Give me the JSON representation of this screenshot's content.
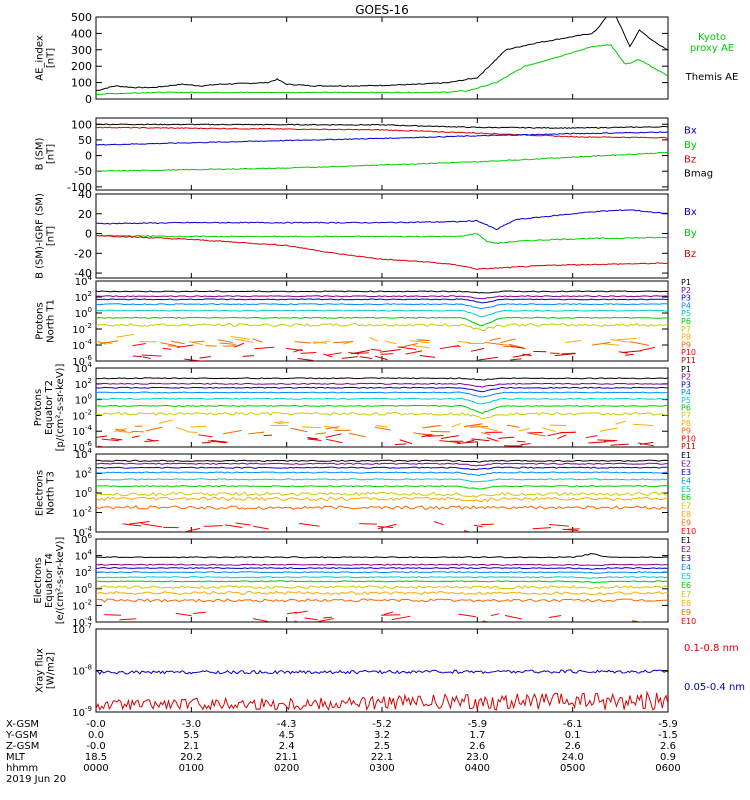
{
  "title": "GOES-16",
  "colors": {
    "black": "#000000",
    "blue": "#0000cc",
    "green": "#00cc00",
    "red": "#dd0000",
    "P": [
      "#000000",
      "#880088",
      "#0000cc",
      "#0088ff",
      "#00cccc",
      "#00cc00",
      "#cccc00",
      "#ffaa00",
      "#ff6600",
      "#ff0000",
      "#cc0000"
    ],
    "E": [
      "#000000",
      "#880088",
      "#0000cc",
      "#0088ff",
      "#00cccc",
      "#00cc00",
      "#cccc00",
      "#ffaa00",
      "#ff6600",
      "#ff0000"
    ]
  },
  "chart_data": [
    {
      "id": "ae",
      "type": "line",
      "ylabel": [
        "AE_index",
        "[nT]"
      ],
      "ylim": [
        0,
        500
      ],
      "yticks": [
        "0",
        "100",
        "200",
        "300",
        "400",
        "500"
      ],
      "legend": [
        {
          "text": "Kyoto",
          "color": "green"
        },
        {
          "text": "proxy AE",
          "color": "green"
        },
        {
          "text": "Themis AE",
          "color": "black"
        }
      ],
      "series": [
        {
          "name": "Themis AE",
          "color": "black",
          "x": [
            0,
            20,
            40,
            60,
            90,
            110,
            130,
            180,
            190,
            200,
            230,
            280,
            340,
            370,
            400,
            430,
            460,
            490,
            520,
            525,
            535,
            545,
            560,
            570,
            590,
            600
          ],
          "y": [
            50,
            80,
            70,
            70,
            90,
            80,
            90,
            100,
            120,
            90,
            80,
            80,
            90,
            100,
            130,
            300,
            340,
            370,
            400,
            420,
            500,
            510,
            320,
            420,
            330,
            300
          ]
        },
        {
          "name": "proxy AE",
          "color": "green",
          "x": [
            0,
            60,
            120,
            180,
            240,
            300,
            360,
            390,
            420,
            450,
            480,
            510,
            520,
            540,
            555,
            570,
            600
          ],
          "y": [
            30,
            40,
            40,
            40,
            40,
            40,
            40,
            50,
            100,
            200,
            250,
            300,
            320,
            330,
            210,
            240,
            140
          ]
        }
      ]
    },
    {
      "id": "bsm",
      "type": "line",
      "ylabel": [
        "B (SM)",
        "[nT]"
      ],
      "ylim": [
        -110,
        120
      ],
      "yticks": [
        "-100",
        "-50",
        "0",
        "50",
        "100"
      ],
      "legend": [
        {
          "text": "Bx",
          "color": "blue"
        },
        {
          "text": "By",
          "color": "green"
        },
        {
          "text": "Bz",
          "color": "red"
        },
        {
          "text": "Bmag",
          "color": "black"
        }
      ],
      "series": [
        {
          "name": "Bmag",
          "color": "black",
          "x": [
            0,
            300,
            400,
            500,
            600
          ],
          "y": [
            100,
            98,
            90,
            88,
            92
          ]
        },
        {
          "name": "Bz",
          "color": "red",
          "x": [
            0,
            300,
            400,
            500,
            600
          ],
          "y": [
            90,
            82,
            72,
            60,
            57
          ]
        },
        {
          "name": "Bx",
          "color": "blue",
          "x": [
            0,
            300,
            400,
            500,
            600
          ],
          "y": [
            34,
            55,
            63,
            70,
            75
          ]
        },
        {
          "name": "By",
          "color": "green",
          "x": [
            0,
            200,
            400,
            500,
            600
          ],
          "y": [
            -50,
            -40,
            -20,
            -5,
            10
          ]
        }
      ]
    },
    {
      "id": "bigrf",
      "type": "line",
      "ylabel": [
        "B (SM)-IGRF (SM)",
        "[nT]"
      ],
      "ylim": [
        -45,
        40
      ],
      "yticks": [
        "-40",
        "-20",
        "0",
        "20",
        "40"
      ],
      "legend": [
        {
          "text": "Bx",
          "color": "blue"
        },
        {
          "text": "By",
          "color": "green"
        },
        {
          "text": "Bz",
          "color": "red"
        }
      ],
      "series": [
        {
          "name": "Bx",
          "color": "blue",
          "x": [
            0,
            100,
            200,
            300,
            380,
            400,
            420,
            440,
            480,
            520,
            560,
            600
          ],
          "y": [
            10,
            11,
            11,
            11,
            12,
            13,
            4,
            14,
            18,
            22,
            24,
            20
          ]
        },
        {
          "name": "By",
          "color": "green",
          "x": [
            0,
            100,
            200,
            300,
            380,
            400,
            410,
            420,
            440,
            480,
            520,
            600
          ],
          "y": [
            -2,
            -3,
            -3,
            -3,
            -3,
            0,
            -8,
            -10,
            -8,
            -6,
            -5,
            -4
          ]
        },
        {
          "name": "Bz",
          "color": "red",
          "x": [
            0,
            100,
            200,
            250,
            300,
            350,
            380,
            400,
            420,
            480,
            540,
            600
          ],
          "y": [
            -2,
            -6,
            -12,
            -20,
            -26,
            -29,
            -32,
            -36,
            -35,
            -32,
            -31,
            -30
          ]
        }
      ]
    },
    {
      "id": "prot1",
      "type": "line",
      "ylabel": [
        "Protons",
        "North T1"
      ],
      "logmin": -6,
      "logmax": 4,
      "ytick_exps": [
        -6,
        -4,
        -2,
        0,
        2,
        4
      ],
      "legend_prefix": "P",
      "legend_count": 11,
      "levels": [
        2.7,
        2.1,
        1.7,
        1.1,
        0.3,
        -0.6,
        -1.5,
        -3.5,
        -3.8,
        -4.7,
        -5.3
      ],
      "dip_x": 405,
      "dip_depth": [
        0.2,
        0.3,
        0.4,
        0.6,
        0.8,
        1.0,
        0.6,
        0.3,
        0,
        0,
        0
      ]
    },
    {
      "id": "prot2",
      "type": "line",
      "ylabel": [
        "Protons",
        "Equator T2",
        "[p/(cm²-s-sr-keV)]"
      ],
      "logmin": -6,
      "logmax": 4,
      "ytick_exps": [
        -6,
        -4,
        -2,
        0,
        2,
        4
      ],
      "legend_prefix": "P",
      "legend_count": 11,
      "levels": [
        2.7,
        2.0,
        1.5,
        0.9,
        0.1,
        -0.8,
        -1.8,
        -3.5,
        -3.8,
        -4.7,
        -5.3
      ],
      "dip_x": 405,
      "dip_depth": [
        0.2,
        0.4,
        0.5,
        0.6,
        0.7,
        0.9,
        0.5,
        0.3,
        0,
        0,
        0
      ]
    },
    {
      "id": "elec3",
      "type": "line",
      "ylabel": [
        "Electrons",
        "North T3"
      ],
      "logmin": -4,
      "logmax": 4,
      "ytick_exps": [
        -4,
        -2,
        0,
        2,
        4
      ],
      "legend_prefix": "E",
      "legend_count": 10,
      "levels": [
        3.3,
        3.0,
        2.6,
        2.1,
        1.4,
        0.7,
        -0.1,
        -0.6,
        -1.5,
        -3.5
      ],
      "dip_x": 400,
      "dip_depth": [
        0.1,
        0.2,
        0.2,
        0.3,
        0.3,
        0.3,
        0.3,
        0.2,
        0,
        0
      ]
    },
    {
      "id": "elec4",
      "type": "line",
      "ylabel": [
        "Electrons",
        "Equator T4",
        "[e/(cm²-s-sr-keV)]"
      ],
      "logmin": -4,
      "logmax": 6,
      "ytick_exps": [
        -4,
        -2,
        0,
        2,
        4,
        6
      ],
      "legend_prefix": "E",
      "legend_count": 10,
      "levels": [
        3.8,
        2.9,
        2.5,
        2.0,
        1.4,
        0.9,
        0.2,
        -0.5,
        -1.4,
        -3.5
      ],
      "dip_x": 520,
      "dip_depth": [
        -0.4,
        0.1,
        0.1,
        0.1,
        0.1,
        0.1,
        0.1,
        0.1,
        0,
        0
      ]
    },
    {
      "id": "xray",
      "type": "line",
      "ylabel": [
        "Xray flux",
        "[W/m2]"
      ],
      "logmin": -9,
      "logmax": -7,
      "ytick_exps": [
        -9,
        -8,
        -7
      ],
      "legend": [
        {
          "text": "0.1-0.8 nm",
          "color": "red"
        },
        {
          "text": "0.05-0.4 nm",
          "color": "blue"
        }
      ],
      "series": [
        {
          "name": "0.1-0.8 nm",
          "color": "red",
          "mean": -8.95
        },
        {
          "name": "0.05-0.4 nm",
          "color": "blue",
          "mean": -8.05
        }
      ]
    }
  ],
  "x_axis": {
    "xlim": [
      0,
      600
    ],
    "row_labels": [
      "X-GSM",
      "Y-GSM",
      "Z-GSM",
      "MLT",
      "hhmm"
    ],
    "columns": [
      [
        "-0.0",
        "0.0",
        "-0.0",
        "18.5",
        "0000"
      ],
      [
        "-3.0",
        "5.5",
        "2.1",
        "20.2",
        "0100"
      ],
      [
        "-4.3",
        "4.5",
        "2.4",
        "21.1",
        "0200"
      ],
      [
        "-5.2",
        "3.2",
        "2.5",
        "22.1",
        "0300"
      ],
      [
        "-5.9",
        "1.7",
        "2.6",
        "23.0",
        "0400"
      ],
      [
        "-6.1",
        "0.1",
        "2.6",
        "24.0",
        "0500"
      ],
      [
        "-5.9",
        "-1.5",
        "2.6",
        "0.9",
        "0600"
      ]
    ],
    "date": "2019 Jun 20"
  }
}
